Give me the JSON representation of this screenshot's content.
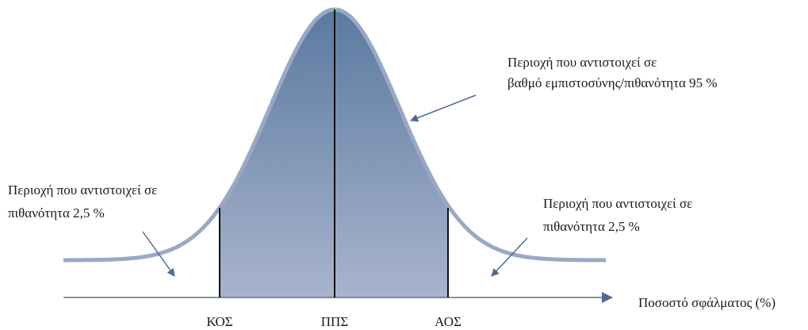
{
  "annotations": [
    {
      "lines": [
        "Περιοχή που αντιστοιχεί σε",
        "βαθμό εμπιστοσύνης/πιθανότητα 95 %"
      ]
    },
    {
      "lines": [
        "Περιοχή που αντιστοιχεί σε",
        "πιθανότητα 2,5 %"
      ]
    },
    {
      "lines": [
        "Περιοχή που αντιστοιχεί σε",
        "πιθανότητα 2,5 %"
      ]
    }
  ],
  "axis_label": "Ποσοστό σφάλματος (%)",
  "markers": [
    "ΚΟΣ",
    "ΠΠΣ",
    "ΑΟΣ"
  ]
}
